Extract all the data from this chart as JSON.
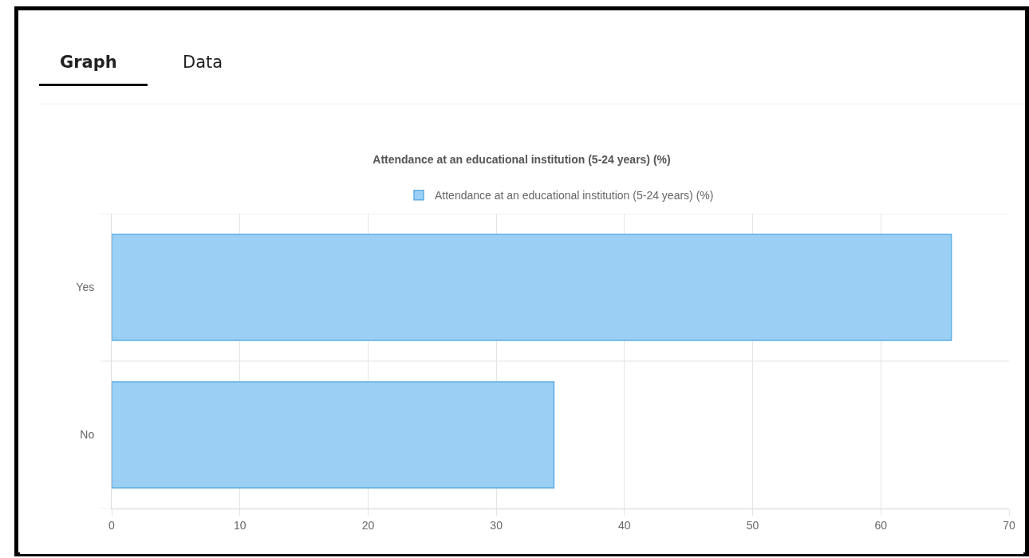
{
  "chart_data": {
    "type": "bar",
    "orientation": "horizontal",
    "title": "Attendance at an educational institution (5-24 years) (%)",
    "annotations": [
      "Graph",
      "Data"
    ],
    "categories": [
      "Yes",
      "No"
    ],
    "series": [
      {
        "name": "Attendance at an educational institution (5-24 years) (%)",
        "color": "#9bcff3",
        "values": [
          65.5,
          34.5
        ]
      }
    ],
    "xlim": [
      0,
      70
    ],
    "xticks": [
      0,
      10,
      20,
      30,
      40,
      50,
      60,
      70
    ],
    "grid": true,
    "legend": "top"
  }
}
